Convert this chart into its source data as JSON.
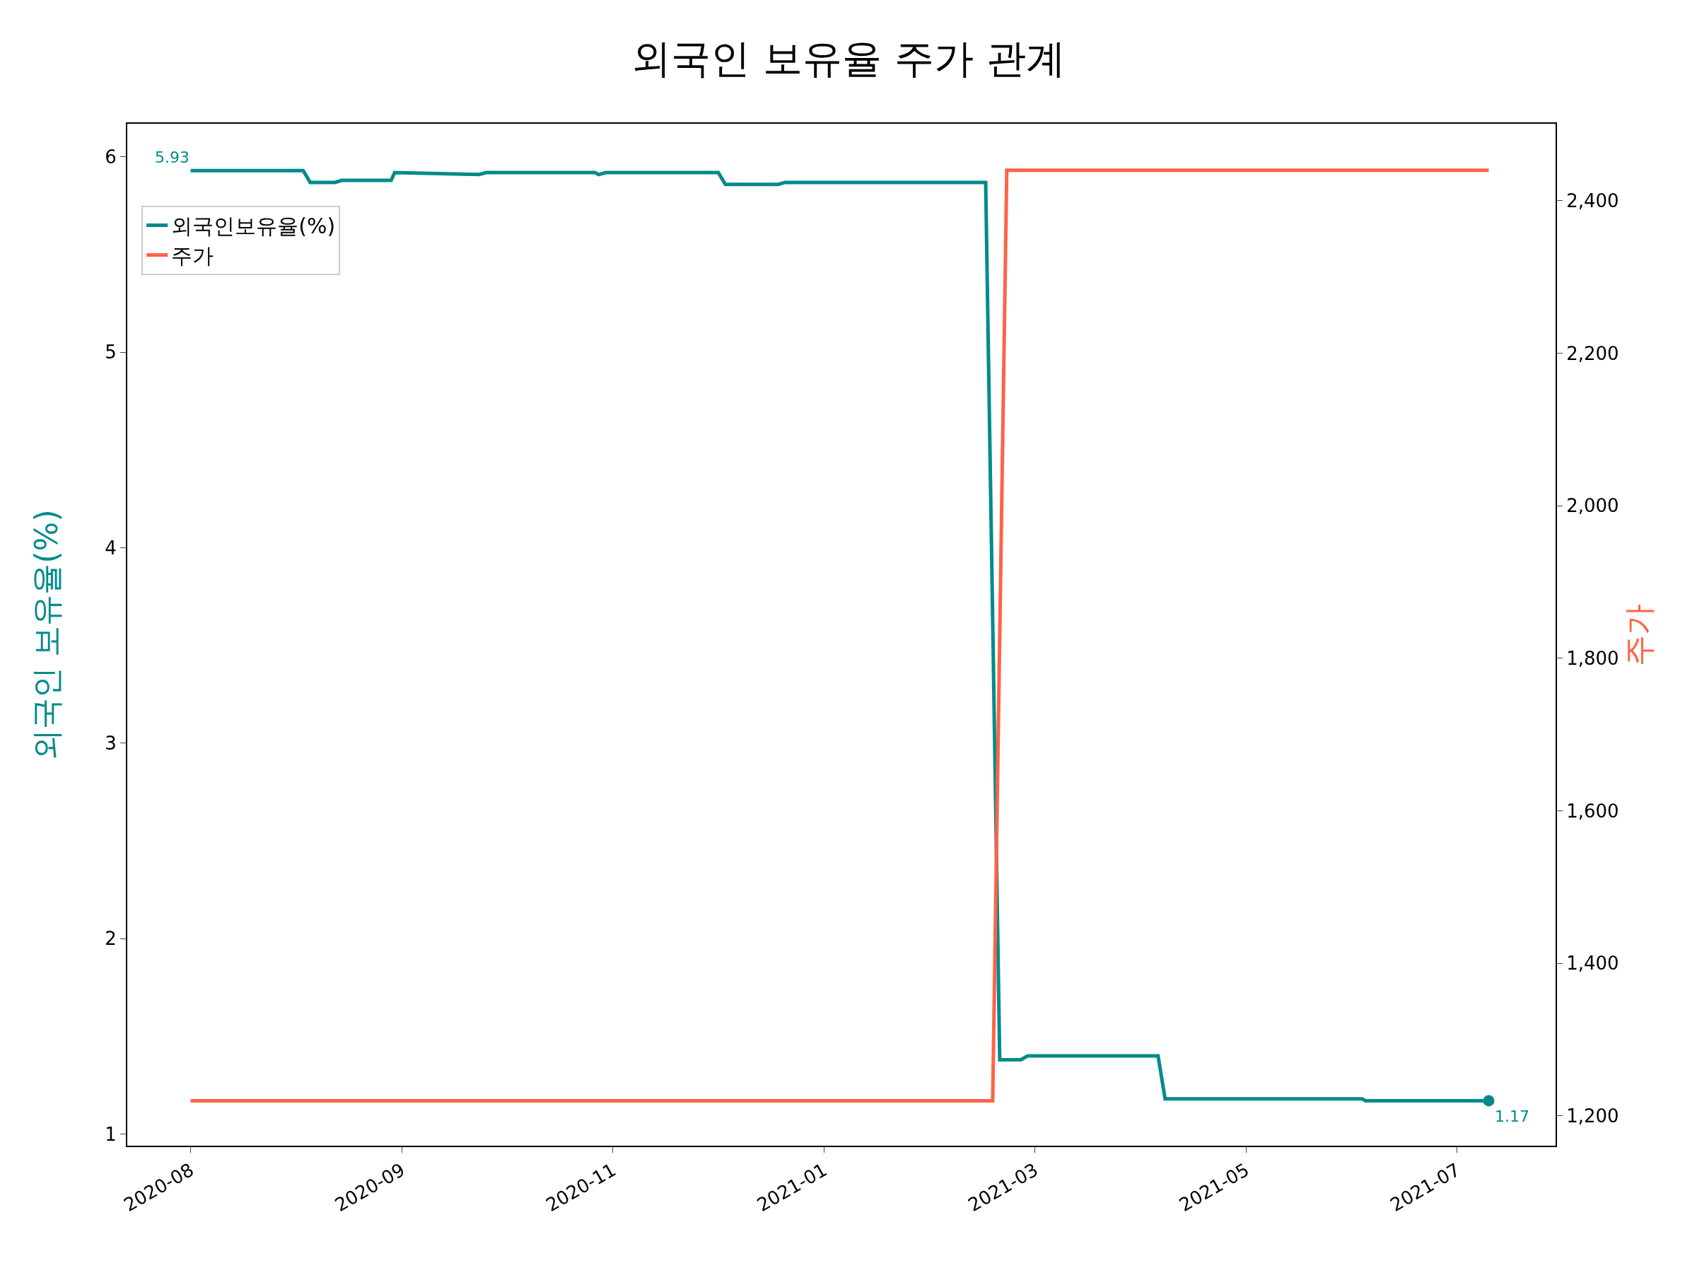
{
  "chart_data": {
    "type": "line",
    "title": "외국인 보유율 주가 관계",
    "ylabel": "외국인 보유율(%)",
    "y2label": "주가",
    "xlim": [
      "2020-07-14",
      "2021-08-24"
    ],
    "xticks": [
      {
        "value": "2020-08-01",
        "label": "2020-08"
      },
      {
        "value": "2020-09-30",
        "label": "2020-09"
      },
      {
        "value": "2020-11-29",
        "label": "2020-11"
      },
      {
        "value": "2021-01-28",
        "label": "2021-01"
      },
      {
        "value": "2021-03-29",
        "label": "2021-03"
      },
      {
        "value": "2021-05-28",
        "label": "2021-05"
      },
      {
        "value": "2021-07-27",
        "label": "2021-07"
      }
    ],
    "ylim": [
      0.94,
      6.17
    ],
    "yticks": [
      1,
      2,
      3,
      4,
      5,
      6
    ],
    "y2lim": [
      1161,
      2501
    ],
    "y2ticks": [
      {
        "value": 1200,
        "label": "1,200"
      },
      {
        "value": 1400,
        "label": "1,400"
      },
      {
        "value": 1600,
        "label": "1,600"
      },
      {
        "value": 1800,
        "label": "1,800"
      },
      {
        "value": 2000,
        "label": "2,000"
      },
      {
        "value": 2200,
        "label": "2,200"
      },
      {
        "value": 2400,
        "label": "2,400"
      }
    ],
    "grid": false,
    "legend": "top left",
    "marker": "none",
    "line_style": "solid",
    "series": [
      {
        "name": "외국인보유율(%)",
        "color": "#008b8b",
        "x": [
          "2020-08-01",
          "2020-09-02",
          "2020-09-04",
          "2020-09-11",
          "2020-09-13",
          "2020-09-27",
          "2020-09-28",
          "2020-10-22",
          "2020-10-24",
          "2020-11-24",
          "2020-11-25",
          "2020-11-27",
          "2020-12-29",
          "2020-12-31",
          "2021-01-15",
          "2021-01-17",
          "2021-03-15",
          "2021-03-19",
          "2021-03-25",
          "2021-03-27",
          "2021-05-03",
          "2021-05-05",
          "2021-06-30",
          "2021-07-01",
          "2021-08-05"
        ],
        "values": [
          5.93,
          5.93,
          5.87,
          5.87,
          5.88,
          5.88,
          5.92,
          5.91,
          5.92,
          5.92,
          5.91,
          5.92,
          5.92,
          5.86,
          5.86,
          5.87,
          5.87,
          1.38,
          1.38,
          1.4,
          1.4,
          1.18,
          1.18,
          1.17,
          1.17
        ]
      },
      {
        "name": "주가",
        "color": "#ff6347",
        "axis": "y2",
        "x": [
          "2020-08-01",
          "2021-03-17",
          "2021-03-21",
          "2021-08-05"
        ],
        "values": [
          1220,
          1220,
          2440,
          2440
        ]
      },
      {
        "type": "scatter",
        "marker": "circle",
        "color": "#008b8b",
        "x": [
          "2021-08-05"
        ],
        "values": [
          1.17
        ]
      }
    ],
    "annotations": [
      {
        "text": "5.93",
        "x": "2020-08-01",
        "y": 5.93
      },
      {
        "text": "1.17",
        "x": "2021-08-05",
        "y": 1.17
      }
    ]
  }
}
